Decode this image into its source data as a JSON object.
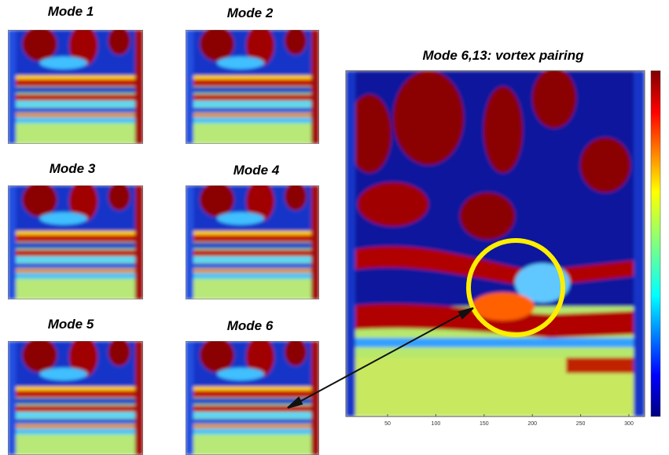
{
  "panels": [
    {
      "title": "Mode 1"
    },
    {
      "title": "Mode 2"
    },
    {
      "title": "Mode 3"
    },
    {
      "title": "Mode 4"
    },
    {
      "title": "Mode 5"
    },
    {
      "title": "Mode 6"
    }
  ],
  "main": {
    "title": "Mode 6,13: vortex pairing",
    "xticks": [
      50,
      100,
      150,
      200,
      250,
      300
    ]
  }
}
